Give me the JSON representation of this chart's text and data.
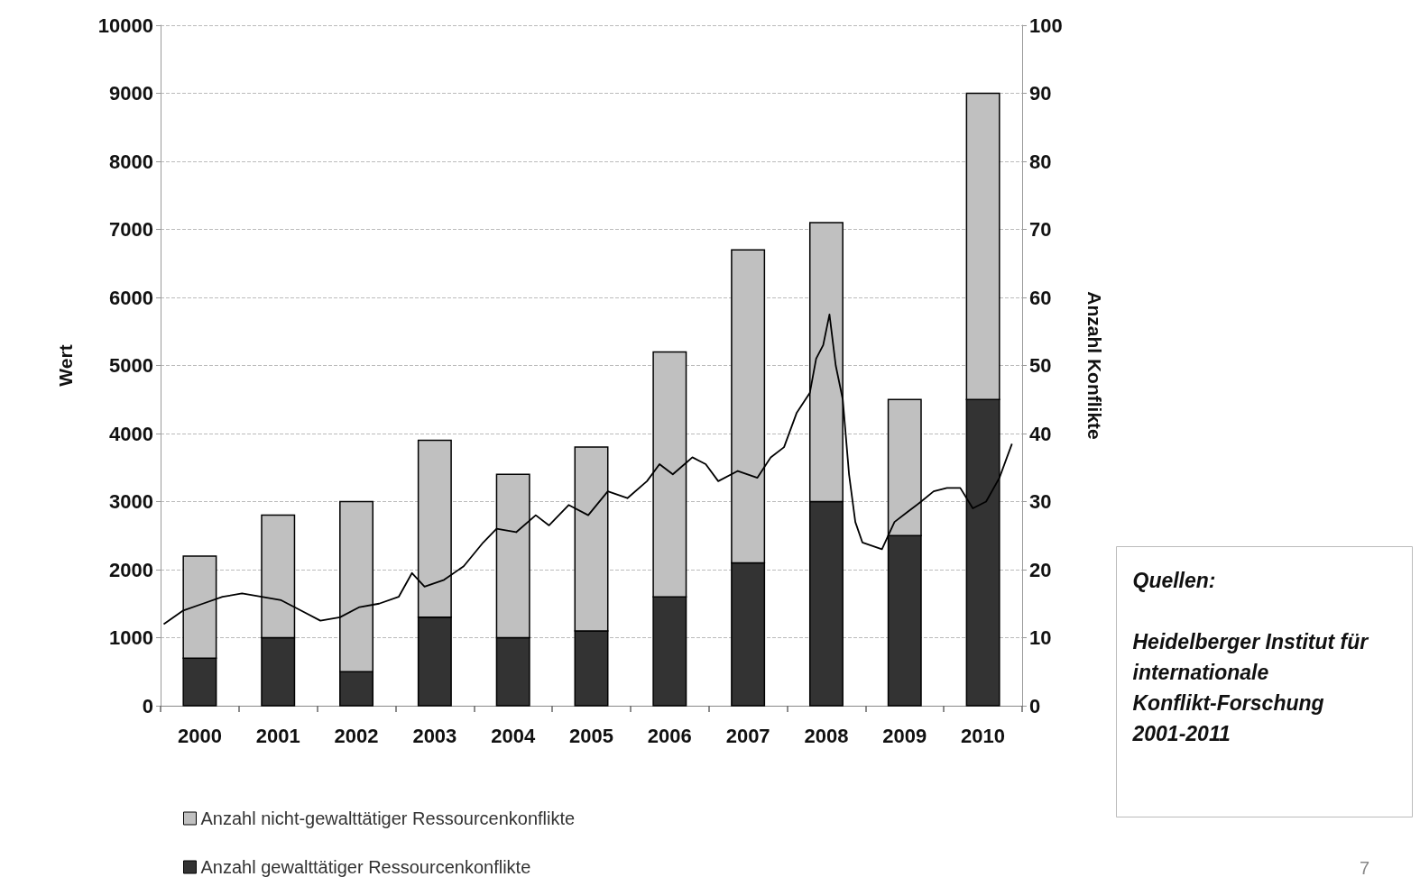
{
  "chart_data": {
    "type": "bar",
    "stacked": true,
    "x": [
      2000.5,
      2001.5,
      2002.5,
      2003.5,
      2004.5,
      2005.5,
      2006.5,
      2007.5,
      2008.5,
      2009.5,
      2010.5
    ],
    "xlim": [
      2000,
      2011
    ],
    "xticks": [
      {
        "value": 2000,
        "label": null
      },
      {
        "value": 2000.5,
        "label": "2000"
      },
      {
        "value": 2001,
        "label": null
      },
      {
        "value": 2001.5,
        "label": "2001"
      },
      {
        "value": 2002,
        "label": null
      },
      {
        "value": 2002.5,
        "label": "2002"
      },
      {
        "value": 2003,
        "label": null
      },
      {
        "value": 2003.5,
        "label": "2003"
      },
      {
        "value": 2004,
        "label": null
      },
      {
        "value": 2004.5,
        "label": "2004"
      },
      {
        "value": 2005,
        "label": null
      },
      {
        "value": 2005.5,
        "label": "2005"
      },
      {
        "value": 2006,
        "label": null
      },
      {
        "value": 2006.5,
        "label": "2006"
      },
      {
        "value": 2007,
        "label": null
      },
      {
        "value": 2007.5,
        "label": "2007"
      },
      {
        "value": 2008,
        "label": null
      },
      {
        "value": 2008.5,
        "label": "2008"
      },
      {
        "value": 2009,
        "label": null
      },
      {
        "value": 2009.5,
        "label": "2009"
      },
      {
        "value": 2010,
        "label": null
      },
      {
        "value": 2010.5,
        "label": "2010"
      },
      {
        "value": 2011,
        "label": null
      }
    ],
    "series": [
      {
        "name": "Anzahl gewalttätiger Ressourcenkonflikte",
        "color": "#333333",
        "axis": "y2",
        "values": [
          7,
          10,
          5,
          13,
          10,
          11,
          16,
          21,
          30,
          25,
          45
        ]
      },
      {
        "name": "Anzahl nicht-gewalttätiger Ressourcenkonflikte",
        "color": "#c0c0c0",
        "axis": "y2",
        "values": [
          15,
          18,
          25,
          26,
          24,
          27,
          36,
          46,
          41,
          20,
          45
        ]
      },
      {
        "type": "line",
        "color": "#000000",
        "axis": "y",
        "x": [
          2000.04,
          2000.29,
          2000.54,
          2000.79,
          2001.04,
          2001.29,
          2001.54,
          2001.79,
          2002.04,
          2002.29,
          2002.54,
          2002.79,
          2003.04,
          2003.21,
          2003.37,
          2003.62,
          2003.87,
          2004.12,
          2004.29,
          2004.54,
          2004.79,
          2004.96,
          2005.21,
          2005.46,
          2005.71,
          2005.96,
          2006.21,
          2006.37,
          2006.54,
          2006.79,
          2006.96,
          2007.12,
          2007.37,
          2007.62,
          2007.79,
          2007.96,
          2008.12,
          2008.29,
          2008.37,
          2008.46,
          2008.54,
          2008.62,
          2008.71,
          2008.79,
          2008.87,
          2008.96,
          2009.21,
          2009.37,
          2009.54,
          2009.71,
          2009.87,
          2010.04,
          2010.21,
          2010.37,
          2010.54,
          2010.71,
          2010.87
        ],
        "values": [
          1200,
          1400,
          1500,
          1600,
          1650,
          1600,
          1550,
          1400,
          1250,
          1300,
          1450,
          1500,
          1600,
          1950,
          1750,
          1850,
          2050,
          2400,
          2600,
          2550,
          2800,
          2650,
          2950,
          2800,
          3150,
          3050,
          3300,
          3550,
          3400,
          3650,
          3550,
          3300,
          3450,
          3350,
          3650,
          3800,
          4300,
          4600,
          5100,
          5300,
          5750,
          5000,
          4500,
          3400,
          2700,
          2400,
          2300,
          2700,
          2850,
          3000,
          3150,
          3200,
          3200,
          2900,
          3000,
          3350,
          3850
        ]
      }
    ],
    "ylabel": "Wert",
    "y2label": "Anzahl Konflikte",
    "ylim": [
      0,
      10000
    ],
    "yticks": [
      0,
      1000,
      2000,
      3000,
      4000,
      5000,
      6000,
      7000,
      8000,
      9000,
      10000
    ],
    "y2lim": [
      0,
      100
    ],
    "y2ticks": [
      0,
      10,
      20,
      30,
      40,
      50,
      60,
      70,
      80,
      90,
      100
    ],
    "grid": "y",
    "legend": "bottom left",
    "marker": "none",
    "annotations": [
      "Quellen:",
      "Heidelberger Institut für internationale Konflikt-Forschung 2001-2011",
      "7"
    ]
  }
}
